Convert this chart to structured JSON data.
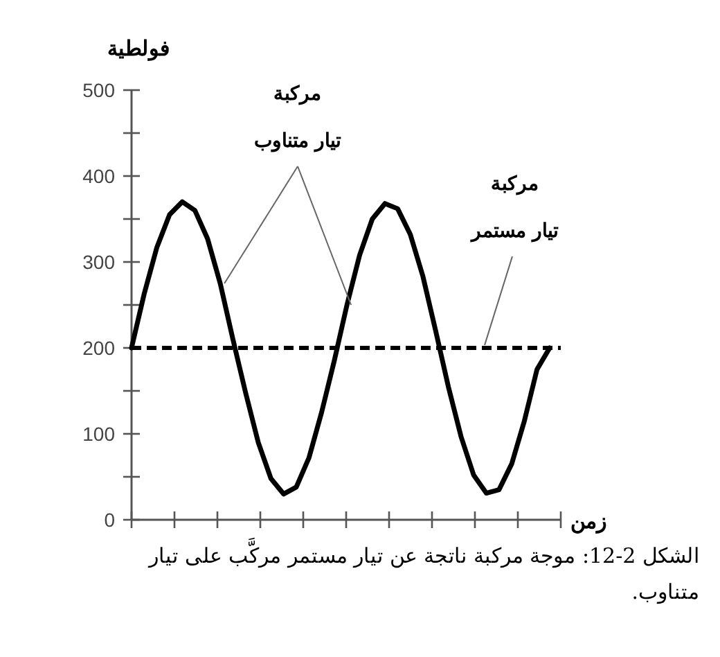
{
  "chart_data": {
    "type": "line",
    "ylabel": "فولطية",
    "xlabel": "زمن",
    "categories": [
      null,
      null,
      null,
      null,
      null,
      null,
      null,
      null,
      null,
      null,
      null,
      null,
      null,
      null,
      null,
      null,
      null,
      null,
      null,
      null,
      null,
      null,
      null,
      null,
      null,
      null,
      null,
      null,
      null,
      null,
      null,
      null,
      null,
      null
    ],
    "series": [
      {
        "name": "مركبة\nتيار متناوب",
        "color": "#000000",
        "values": [
          200,
          263,
          317,
          355,
          370,
          360,
          327,
          275,
          210,
          148,
          90,
          48,
          30,
          38,
          72,
          125,
          185,
          250,
          308,
          350,
          368,
          362,
          332,
          283,
          220,
          155,
          97,
          52,
          31,
          35,
          65,
          115,
          175,
          200
        ]
      }
    ],
    "line_style": "solid",
    "marker": "none",
    "grid": false,
    "legend": false,
    "ylim": [
      0,
      500
    ],
    "yticks": [
      0,
      {
        "value": 50,
        "label": null
      },
      100,
      {
        "value": 150,
        "label": null
      },
      200,
      {
        "value": 250,
        "label": null
      },
      300,
      {
        "value": 350,
        "label": null
      },
      400,
      {
        "value": 450,
        "label": null
      },
      500
    ],
    "ref_lines": [
      {
        "axis": "y",
        "value": 200,
        "label": "مركبة\nتيار مستمر",
        "color": "#000000",
        "line_style": "dashed"
      }
    ],
    "annotations": [
      "الشكل 2-12: موجة مركبة ناتجة عن تيار مستمر مركَّب على تيار متناوب."
    ]
  }
}
